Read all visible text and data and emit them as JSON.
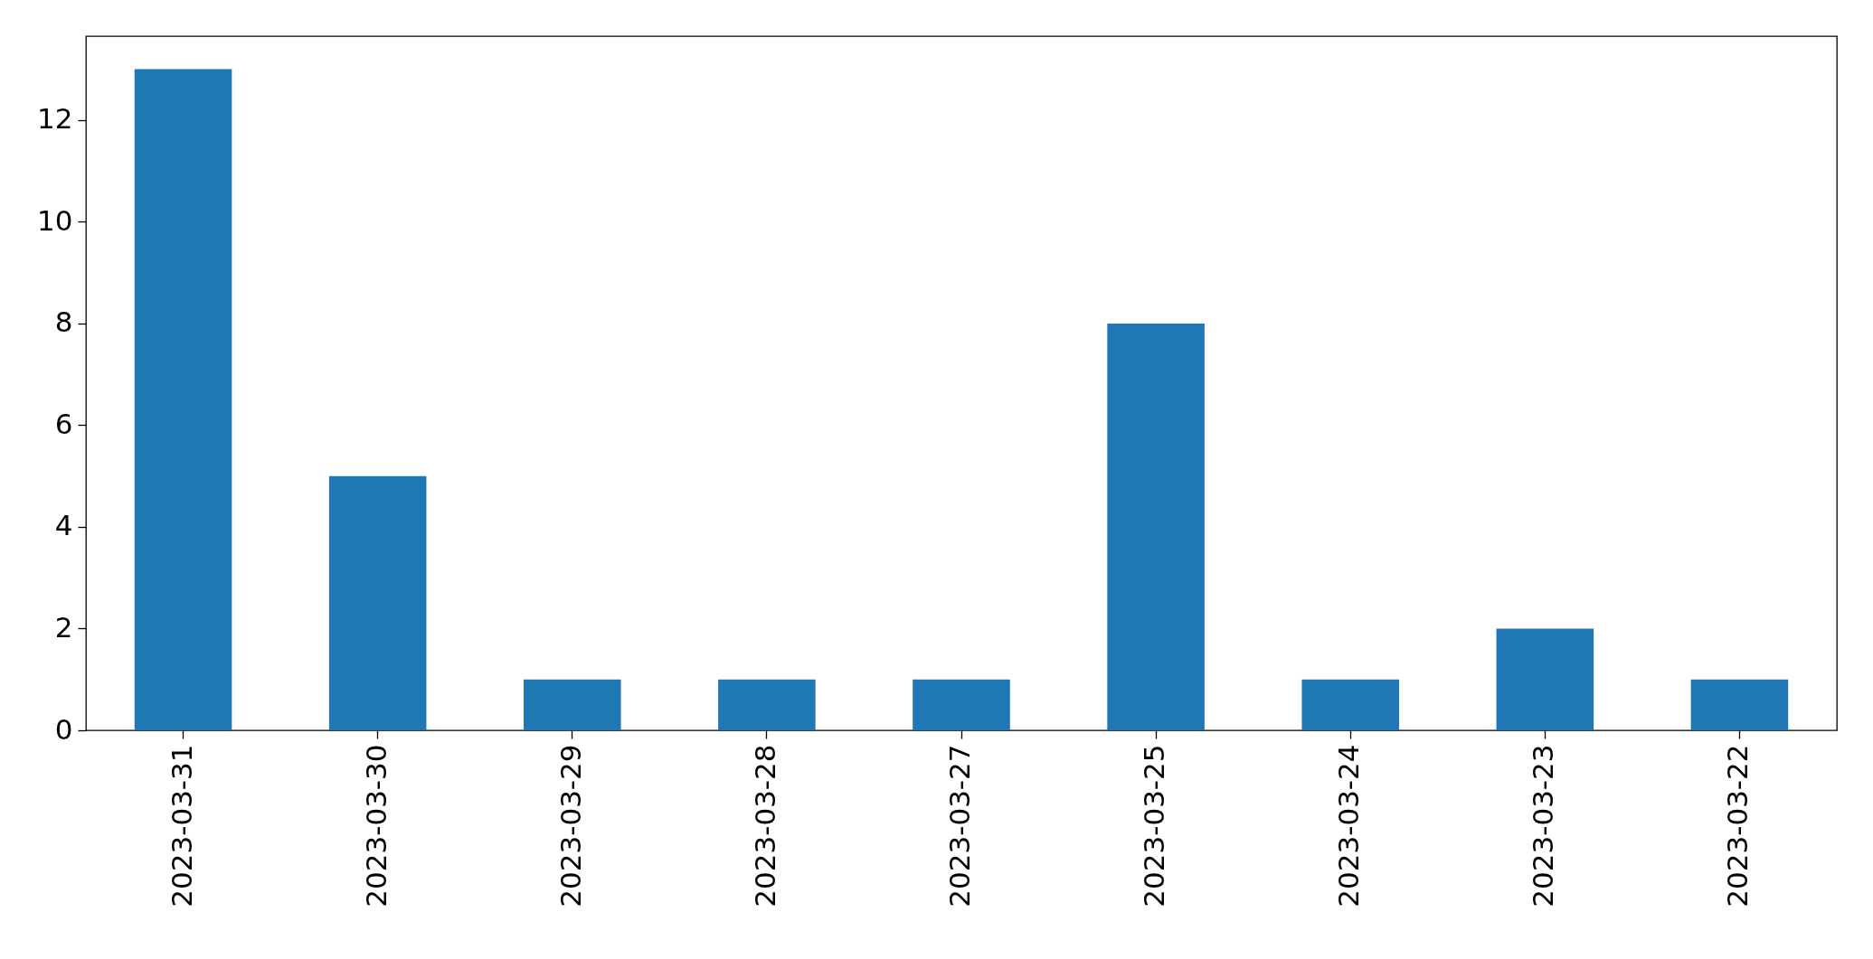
{
  "chart_data": {
    "type": "bar",
    "categories": [
      "2023-03-31",
      "2023-03-30",
      "2023-03-29",
      "2023-03-28",
      "2023-03-27",
      "2023-03-25",
      "2023-03-24",
      "2023-03-23",
      "2023-03-22"
    ],
    "values": [
      13,
      5,
      1,
      1,
      1,
      8,
      1,
      2,
      1
    ],
    "color": "#1f77b4",
    "ylim": [
      0,
      13.65
    ],
    "yticks": [
      0,
      2,
      4,
      6,
      8,
      10,
      12
    ],
    "grid": false
  }
}
